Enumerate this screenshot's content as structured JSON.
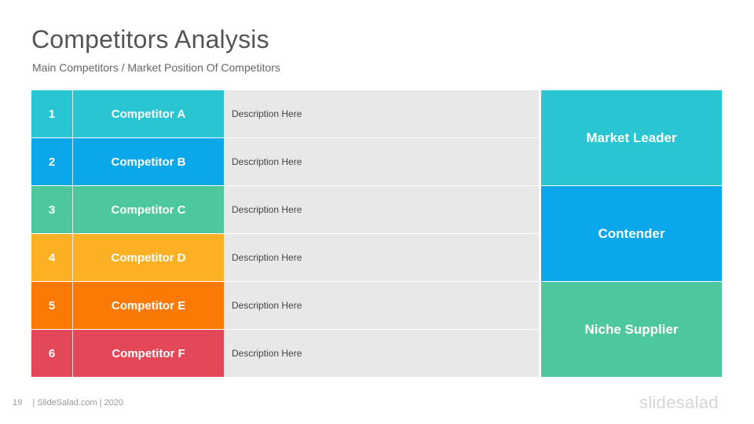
{
  "title": "Competitors Analysis",
  "subtitle": "Main Competitors / Market Position Of Competitors",
  "rows": [
    {
      "num": "1",
      "name": "Competitor A",
      "desc": "Description Here",
      "color": "#2ac5d2"
    },
    {
      "num": "2",
      "name": "Competitor B",
      "desc": "Description Here",
      "color": "#0aa7eb"
    },
    {
      "num": "3",
      "name": "Competitor C",
      "desc": "Description Here",
      "color": "#4dc89c"
    },
    {
      "num": "4",
      "name": "Competitor D",
      "desc": "Description Here",
      "color": "#fbb123"
    },
    {
      "num": "5",
      "name": "Competitor E",
      "desc": "Description Here",
      "color": "#fa7a05"
    },
    {
      "num": "6",
      "name": "Competitor F",
      "desc": "Description Here",
      "color": "#e34858"
    }
  ],
  "categories": [
    {
      "label": "Market Leader",
      "color": "#2ac5d2"
    },
    {
      "label": "Contender",
      "color": "#0aa7eb"
    },
    {
      "label": "Niche Supplier",
      "color": "#4dc89c"
    }
  ],
  "footer": {
    "page": "19",
    "text": "| SlideSalad.com | 2020"
  },
  "logo": "slidesalad"
}
